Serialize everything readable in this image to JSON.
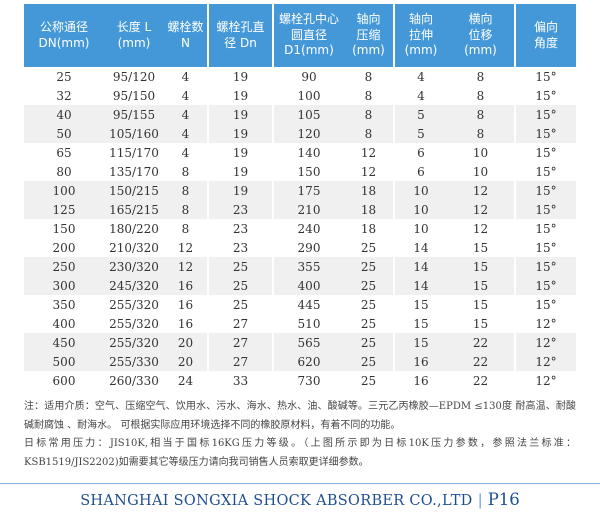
{
  "colors": {
    "header_bg": "#4598d8",
    "header_text": "#ffffff",
    "row_alt_bg": "#f0f0f0",
    "body_text": "#333333",
    "note_text": "#444444",
    "footer_text": "#1e4f92",
    "footer_line": "#8aafdc"
  },
  "table": {
    "columns": [
      "公称通径\nDN(mm)",
      "长度 L\n(mm)",
      "螺栓数\nN",
      "螺栓孔直\n径 Dn",
      "螺栓孔中心\n圆直径\nD1(mm)",
      "轴向\n压缩\n(mm)",
      "轴向\n拉伸\n(mm)",
      "横向\n位移\n(mm)",
      "偏向\n角度"
    ],
    "rows": [
      [
        "25",
        "95/120",
        "4",
        "19",
        "90",
        "8",
        "4",
        "8",
        "15°"
      ],
      [
        "32",
        "95/150",
        "4",
        "19",
        "100",
        "8",
        "4",
        "8",
        "15°"
      ],
      [
        "40",
        "95/155",
        "4",
        "19",
        "105",
        "8",
        "5",
        "8",
        "15°"
      ],
      [
        "50",
        "105/160",
        "4",
        "19",
        "120",
        "8",
        "5",
        "8",
        "15°"
      ],
      [
        "65",
        "115/170",
        "4",
        "19",
        "140",
        "12",
        "6",
        "10",
        "15°"
      ],
      [
        "80",
        "135/170",
        "8",
        "19",
        "150",
        "12",
        "6",
        "10",
        "15°"
      ],
      [
        "100",
        "150/215",
        "8",
        "19",
        "175",
        "18",
        "10",
        "12",
        "15°"
      ],
      [
        "125",
        "165/215",
        "8",
        "23",
        "210",
        "18",
        "10",
        "12",
        "15°"
      ],
      [
        "150",
        "180/220",
        "8",
        "23",
        "240",
        "18",
        "10",
        "12",
        "15°"
      ],
      [
        "200",
        "210/320",
        "12",
        "23",
        "290",
        "25",
        "14",
        "15",
        "15°"
      ],
      [
        "250",
        "230/320",
        "12",
        "25",
        "355",
        "25",
        "14",
        "15",
        "15°"
      ],
      [
        "300",
        "245/320",
        "16",
        "25",
        "400",
        "25",
        "14",
        "15",
        "15°"
      ],
      [
        "350",
        "255/320",
        "16",
        "25",
        "445",
        "25",
        "15",
        "15",
        "15°"
      ],
      [
        "400",
        "255/320",
        "16",
        "27",
        "510",
        "25",
        "15",
        "15",
        "12°"
      ],
      [
        "450",
        "255/320",
        "20",
        "27",
        "565",
        "25",
        "15",
        "22",
        "12°"
      ],
      [
        "500",
        "255/330",
        "20",
        "27",
        "620",
        "25",
        "16",
        "22",
        "12°"
      ],
      [
        "600",
        "260/330",
        "24",
        "33",
        "730",
        "25",
        "16",
        "22",
        "12°"
      ]
    ]
  },
  "notes": {
    "p1": "注：适用介质：空气、压缩空气、饮用水、污水、海水、热水、油、酸碱等。三元乙丙橡胶—EPDM ≤130度 耐高温、耐酸碱耐腐蚀 、耐海水。 可根据实际应用环境选择不同的橡胶原材料，有着不同的功能。",
    "p2": "日标常用压力：JIS10K,相当于国标16KG压力等级。（上图所示即为日标10K压力参数，参照法兰标准：KSB1519/JIS2202)如需要其它等级压力请向我司销售人员索取更详细参数。"
  },
  "footer": {
    "company": "SHANGHAI SONGXIA SHOCK ABSORBER CO.,LTD",
    "separator": "|",
    "page": "P16"
  }
}
